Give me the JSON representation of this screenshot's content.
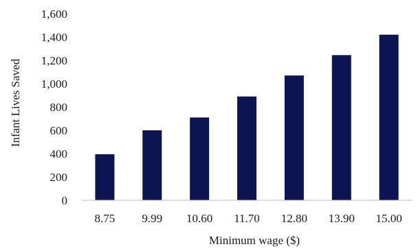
{
  "chart_data": {
    "type": "bar",
    "title": "",
    "xlabel": "Minimum wage ($)",
    "ylabel": "Infant Lives Saved",
    "categories": [
      "8.75",
      "9.99",
      "10.60",
      "11.70",
      "12.80",
      "13.90",
      "15.00"
    ],
    "values": [
      395,
      600,
      710,
      890,
      1070,
      1245,
      1420
    ],
    "ylim": [
      0,
      1600
    ],
    "yticks": [
      0,
      200,
      400,
      600,
      800,
      1000,
      1200,
      1400,
      1600
    ],
    "ytick_labels": [
      "0",
      "200",
      "400",
      "600",
      "800",
      "1,000",
      "1,200",
      "1,400",
      "1,600"
    ],
    "grid": false,
    "legend": "none",
    "bar_color": "#0d1452",
    "axis_color": "#bfbfbf"
  }
}
